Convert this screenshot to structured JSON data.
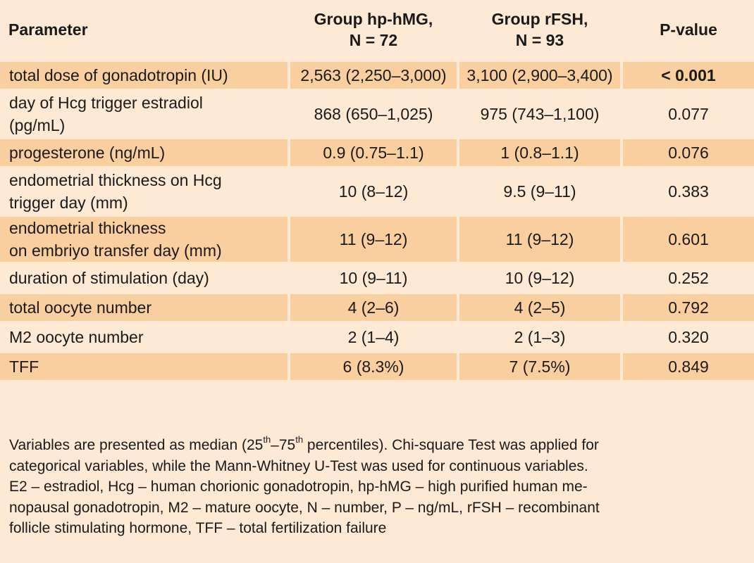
{
  "table": {
    "headers": {
      "parameter": "Parameter",
      "group1_line1": "Group hp-hMG,",
      "group1_line2": "N = 72",
      "group2_line1": "Group rFSH,",
      "group2_line2": "N = 93",
      "pvalue": "P-value"
    },
    "rows": [
      {
        "param_line1": "total dose of gonadotropin (IU)",
        "param_line2": "",
        "g1": "2,563 (2,250–3,000)",
        "g2": "3,100 (2,900–3,400)",
        "p": "< 0.001"
      },
      {
        "param_line1": "day of Hcg trigger estradiol",
        "param_line2": "(pg/mL)",
        "g1": "868 (650–1,025)",
        "g2": "975 (743–1,100)",
        "p": "0.077"
      },
      {
        "param_line1": "progesterone (ng/mL)",
        "param_line2": "",
        "g1": "0.9 (0.75–1.1)",
        "g2": "1 (0.8–1.1)",
        "p": "0.076"
      },
      {
        "param_line1": "endometrial thickness on Hcg",
        "param_line2": "trigger day (mm)",
        "g1": "10 (8–12)",
        "g2": "9.5 (9–11)",
        "p": "0.383"
      },
      {
        "param_line1": "endometrial thickness",
        "param_line2": "on embriyo transfer day (mm)",
        "g1": "11 (9–12)",
        "g2": "11 (9–12)",
        "p": "0.601"
      },
      {
        "param_line1": "duration of stimulation (day)",
        "param_line2": "",
        "g1": "10 (9–11)",
        "g2": "10 (9–12)",
        "p": "0.252"
      },
      {
        "param_line1": "total oocyte number",
        "param_line2": "",
        "g1": "4 (2–6)",
        "g2": "4 (2–5)",
        "p": "0.792"
      },
      {
        "param_line1": "M2 oocyte number",
        "param_line2": "",
        "g1": "2 (1–4)",
        "g2": "2 (1–3)",
        "p": "0.320"
      },
      {
        "param_line1": "TFF",
        "param_line2": "",
        "g1": "6 (8.3%)",
        "g2": "7 (7.5%)",
        "p": "0.849"
      }
    ]
  },
  "footnote": {
    "l1_a": "Variables are presented as median (25",
    "l1_sup1": "th",
    "l1_b": "–75",
    "l1_sup2": "th",
    "l1_c": " percentiles). Chi-square Test was applied for",
    "l2": "categorical variables, while the Mann-Whitney U-Test was used for continuous variables.",
    "l3": "E2 – estradiol, Hcg – human chorionic gonadotropin, hp-hMG – high purified human me-",
    "l4": "nopausal gonadotropin, M2 – mature oocyte, N – number, P – ng/mL, rFSH – recombinant",
    "l5": "follicle stimulating hormone, TFF – total fertilization failure"
  },
  "colors": {
    "background": "#fde9d4",
    "row_shade": "#f9cf9f",
    "text": "#1a1a1a"
  }
}
